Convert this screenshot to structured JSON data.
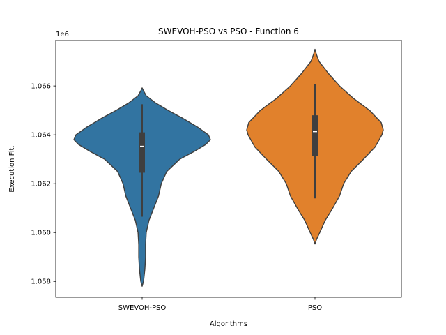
{
  "chart_data": {
    "type": "violin",
    "title": "SWEVOH-PSO vs PSO - Function 6",
    "xlabel": "Algorithms",
    "ylabel": "Execution Fit.",
    "y_offset_label": "1e6",
    "ylim": [
      1.05735,
      1.06786
    ],
    "yticks": [
      1.058,
      1.06,
      1.062,
      1.064,
      1.066
    ],
    "ytick_labels": [
      "1.058",
      "1.060",
      "1.062",
      "1.064",
      "1.066"
    ],
    "categories": [
      "SWEVOH-PSO",
      "PSO"
    ],
    "grid": false,
    "series": [
      {
        "name": "SWEVOH-PSO",
        "color": "#3274a1",
        "whisker_low": 1.06065,
        "q1": 1.06245,
        "median": 1.06353,
        "q3": 1.0641,
        "whisker_high": 1.06525,
        "density": [
          [
            1.0578,
            0.0
          ],
          [
            1.058,
            0.02
          ],
          [
            1.0585,
            0.04
          ],
          [
            1.059,
            0.05
          ],
          [
            1.0595,
            0.05
          ],
          [
            1.06,
            0.06
          ],
          [
            1.0605,
            0.1
          ],
          [
            1.061,
            0.17
          ],
          [
            1.0615,
            0.24
          ],
          [
            1.062,
            0.28
          ],
          [
            1.0625,
            0.36
          ],
          [
            1.063,
            0.55
          ],
          [
            1.0633,
            0.75
          ],
          [
            1.0636,
            0.93
          ],
          [
            1.0638,
            1.0
          ],
          [
            1.064,
            0.97
          ],
          [
            1.0643,
            0.82
          ],
          [
            1.0647,
            0.58
          ],
          [
            1.065,
            0.38
          ],
          [
            1.0653,
            0.2
          ],
          [
            1.0656,
            0.06
          ],
          [
            1.0658,
            0.02
          ],
          [
            1.06592,
            0.0
          ]
        ]
      },
      {
        "name": "PSO",
        "color": "#e1812c",
        "whisker_low": 1.0614,
        "q1": 1.06312,
        "median": 1.06413,
        "q3": 1.0648,
        "whisker_high": 1.06608,
        "density": [
          [
            1.05953,
            0.0
          ],
          [
            1.0597,
            0.02
          ],
          [
            1.06,
            0.07
          ],
          [
            1.0605,
            0.15
          ],
          [
            1.061,
            0.26
          ],
          [
            1.0615,
            0.36
          ],
          [
            1.062,
            0.42
          ],
          [
            1.0625,
            0.53
          ],
          [
            1.063,
            0.71
          ],
          [
            1.0635,
            0.88
          ],
          [
            1.064,
            0.98
          ],
          [
            1.0642,
            1.0
          ],
          [
            1.0645,
            0.97
          ],
          [
            1.065,
            0.8
          ],
          [
            1.0655,
            0.56
          ],
          [
            1.066,
            0.36
          ],
          [
            1.0665,
            0.2
          ],
          [
            1.067,
            0.06
          ],
          [
            1.0673,
            0.02
          ],
          [
            1.0675,
            0.0
          ]
        ]
      }
    ]
  }
}
